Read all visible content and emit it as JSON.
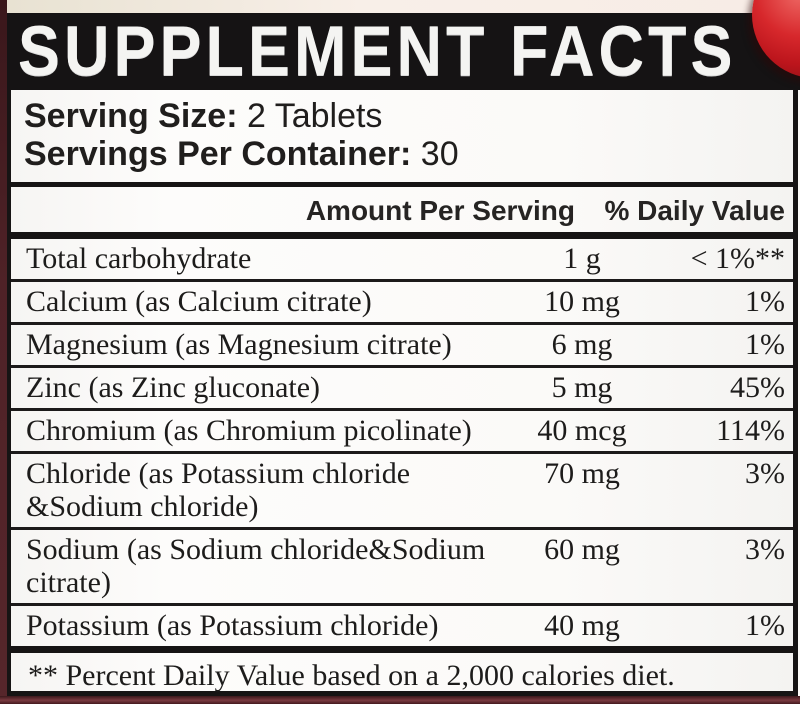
{
  "colors": {
    "accent_red": "#c41e24",
    "maroon_edge": "#4f2227",
    "cream_strip": "#f7ece6",
    "banner_black": "#151314"
  },
  "title": "SUPPLEMENT FACTS",
  "serving": {
    "size_label": "Serving Size:",
    "size_value": " 2 Tablets",
    "container_label": "Servings Per Container:",
    "container_value": " 30"
  },
  "table": {
    "headers": {
      "amount": "Amount Per Serving",
      "daily_value": "% Daily Value"
    },
    "rows": [
      {
        "label": "Total carbohydrate",
        "amount": "1 g",
        "dv": "< 1%**"
      },
      {
        "label": "Calcium (as Calcium citrate)",
        "amount": "10 mg",
        "dv": "1%"
      },
      {
        "label": "Magnesium (as Magnesium citrate)",
        "amount": "6 mg",
        "dv": "1%"
      },
      {
        "label": "Zinc (as Zinc gluconate)",
        "amount": "5 mg",
        "dv": "45%"
      },
      {
        "label": "Chromium (as Chromium picolinate)",
        "amount": "40 mcg",
        "dv": "114%"
      },
      {
        "label": "Chloride (as Potassium chloride\n&Sodium chloride)",
        "amount": "70 mg",
        "dv": "3%"
      },
      {
        "label": "Sodium (as Sodium chloride&Sodium\ncitrate)",
        "amount": "60 mg",
        "dv": "3%"
      },
      {
        "label": "Potassium (as Potassium chloride)",
        "amount": "40 mg",
        "dv": "1%"
      }
    ]
  },
  "footnote": "** Percent Daily Value based on a 2,000 calories diet."
}
